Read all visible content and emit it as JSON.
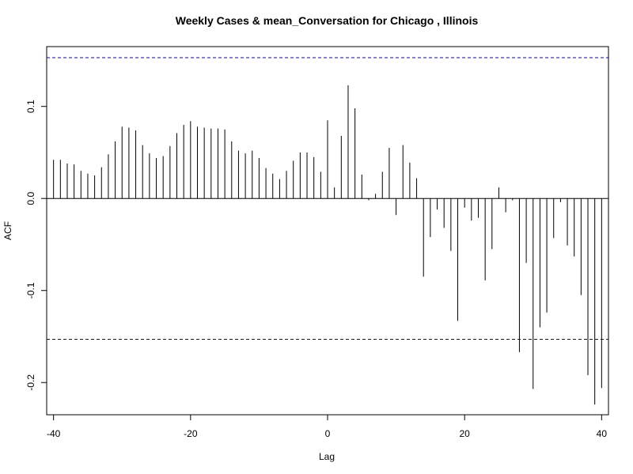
{
  "chart_data": {
    "type": "bar",
    "title": "Weekly Cases & mean_Conversation for Chicago , Illinois",
    "xlabel": "Lag",
    "ylabel": "ACF",
    "xlim": [
      -41,
      41
    ],
    "ylim": [
      -0.235,
      0.165
    ],
    "x_ticks": [
      -40,
      -20,
      0,
      20,
      40
    ],
    "x_tick_labels": [
      "-40",
      "-20",
      "0",
      "20",
      "40"
    ],
    "y_ticks": [
      -0.2,
      -0.1,
      0.0,
      0.1
    ],
    "y_tick_labels": [
      "-0.2",
      "-0.1",
      "0.0",
      "0.1"
    ],
    "confidence_bounds": [
      0.153,
      -0.153
    ],
    "zero_line": true,
    "colors": {
      "bars": "#000000",
      "bounds": "#0000cc",
      "axes": "#000000"
    },
    "x": [
      -40,
      -39,
      -38,
      -37,
      -36,
      -35,
      -34,
      -33,
      -32,
      -31,
      -30,
      -29,
      -28,
      -27,
      -26,
      -25,
      -24,
      -23,
      -22,
      -21,
      -20,
      -19,
      -18,
      -17,
      -16,
      -15,
      -14,
      -13,
      -12,
      -11,
      -10,
      -9,
      -8,
      -7,
      -6,
      -5,
      -4,
      -3,
      -2,
      -1,
      0,
      1,
      2,
      3,
      4,
      5,
      6,
      7,
      8,
      9,
      10,
      11,
      12,
      13,
      14,
      15,
      16,
      17,
      18,
      19,
      20,
      21,
      22,
      23,
      24,
      25,
      26,
      27,
      28,
      29,
      30,
      31,
      32,
      33,
      34,
      35,
      36,
      37,
      38,
      39,
      40
    ],
    "values": [
      0.042,
      0.042,
      0.038,
      0.037,
      0.03,
      0.027,
      0.025,
      0.034,
      0.048,
      0.062,
      0.078,
      0.077,
      0.074,
      0.058,
      0.049,
      0.044,
      0.046,
      0.057,
      0.071,
      0.08,
      0.084,
      0.078,
      0.077,
      0.076,
      0.076,
      0.075,
      0.062,
      0.052,
      0.049,
      0.052,
      0.044,
      0.033,
      0.027,
      0.021,
      0.03,
      0.041,
      0.05,
      0.05,
      0.045,
      0.029,
      0.085,
      0.012,
      0.068,
      0.123,
      0.098,
      0.026,
      -0.002,
      0.005,
      0.029,
      0.055,
      -0.018,
      0.058,
      0.039,
      0.022,
      -0.085,
      -0.042,
      -0.012,
      -0.032,
      -0.057,
      -0.133,
      -0.01,
      -0.024,
      -0.021,
      -0.089,
      -0.055,
      0.012,
      -0.015,
      -0.002,
      -0.167,
      -0.07,
      -0.207,
      -0.14,
      -0.124,
      -0.043,
      -0.004,
      -0.051,
      -0.063,
      -0.105,
      -0.192,
      -0.224,
      -0.206
    ]
  }
}
